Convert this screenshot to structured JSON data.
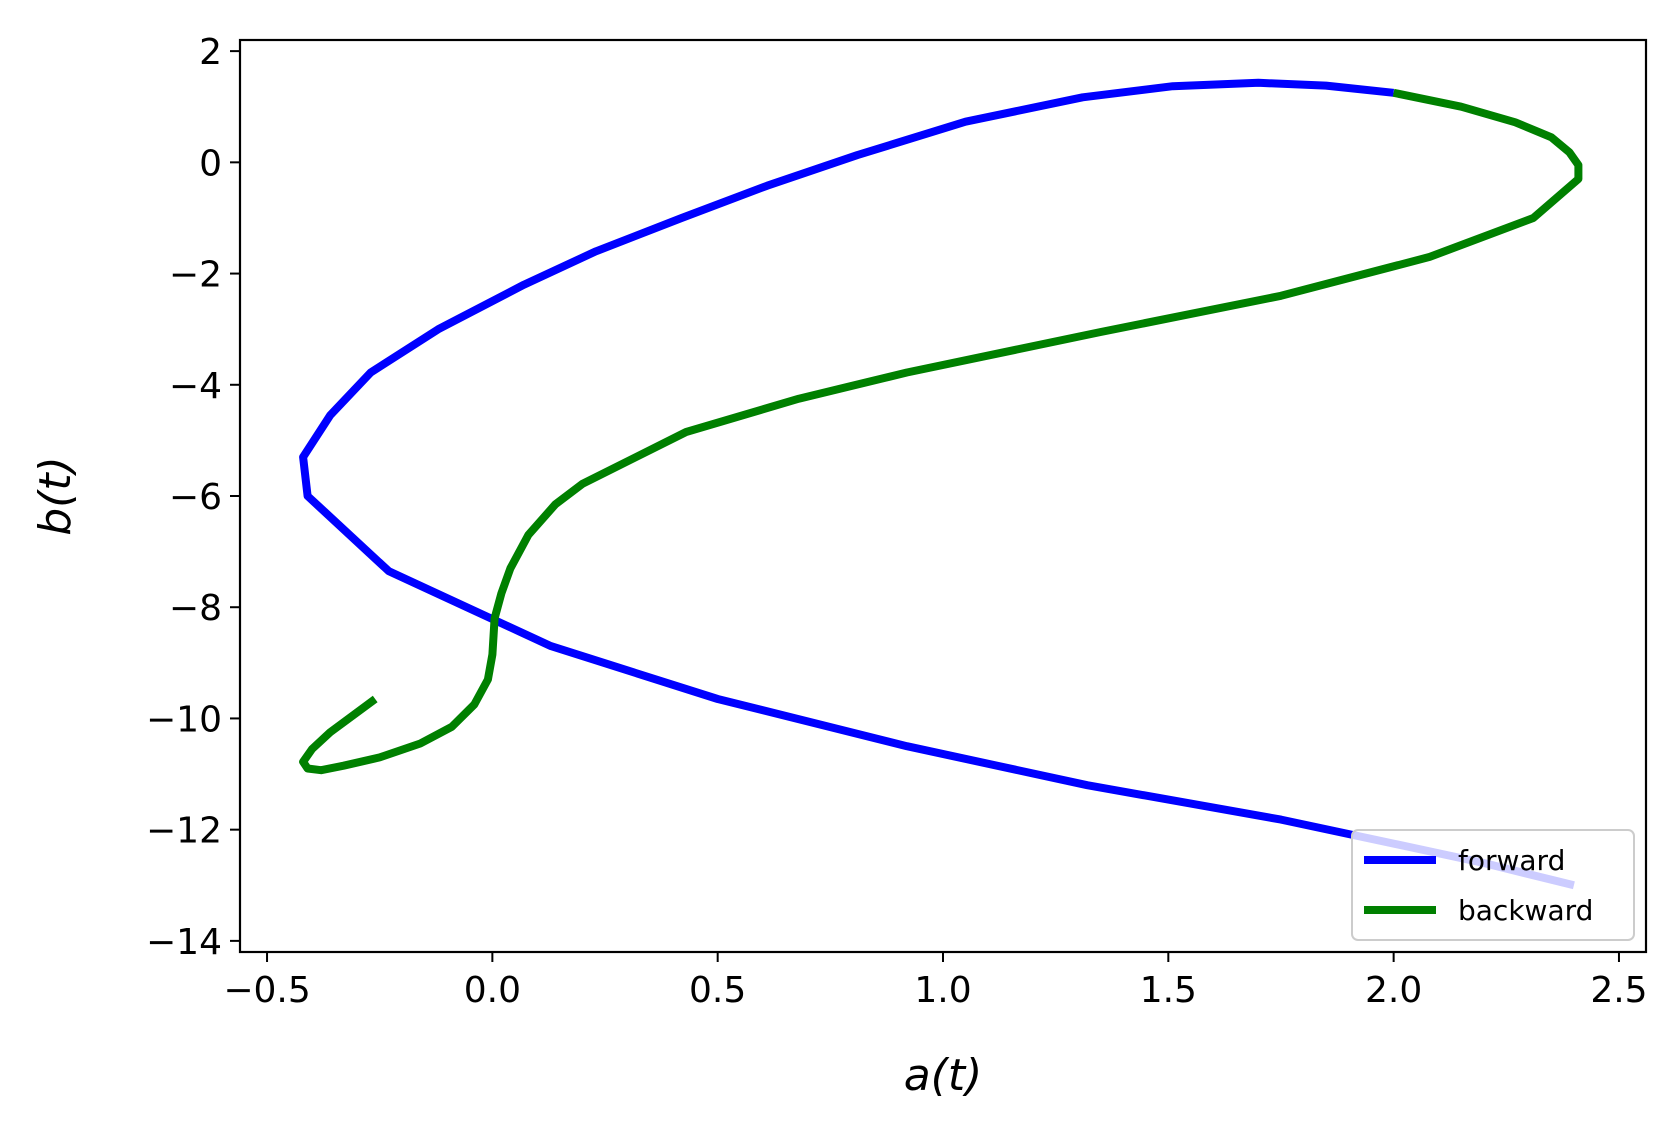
{
  "chart_data": {
    "type": "line",
    "title": "",
    "xlabel": "a(t)",
    "ylabel": "b(t)",
    "xlim": [
      -0.56,
      2.56
    ],
    "ylim": [
      -14.2,
      2.2
    ],
    "xticks": [
      -0.5,
      0.0,
      0.5,
      1.0,
      1.5,
      2.0,
      2.5
    ],
    "yticks": [
      2,
      0,
      -2,
      -4,
      -6,
      -8,
      -10,
      -12,
      -14
    ],
    "xtick_labels": [
      "−0.5",
      "0.0",
      "0.5",
      "1.0",
      "1.5",
      "2.0",
      "2.5"
    ],
    "ytick_labels": [
      "2",
      "0",
      "−2",
      "−4",
      "−6",
      "−8",
      "−10",
      "−12",
      "−14"
    ],
    "grid": false,
    "legend_position": "lower-right",
    "series": [
      {
        "name": "forward",
        "color": "#0000ff",
        "x": [
          2.4,
          2.2,
          2.0,
          1.75,
          1.32,
          0.92,
          0.5,
          0.13,
          -0.23,
          -0.41,
          -0.42,
          -0.36,
          -0.27,
          -0.12,
          0.07,
          0.23,
          0.42,
          0.61,
          0.81,
          1.05,
          1.31,
          1.51,
          1.7,
          1.85,
          2.0
        ],
        "y": [
          -13.0,
          -12.6,
          -12.25,
          -11.82,
          -11.2,
          -10.5,
          -9.65,
          -8.7,
          -7.35,
          -6.0,
          -5.3,
          -4.55,
          -3.78,
          -3.0,
          -2.2,
          -1.6,
          -1.0,
          -0.42,
          0.13,
          0.73,
          1.17,
          1.37,
          1.43,
          1.38,
          1.25
        ]
      },
      {
        "name": "backward",
        "color": "#008000",
        "x": [
          2.0,
          2.15,
          2.27,
          2.35,
          2.39,
          2.41,
          2.41,
          2.31,
          2.08,
          1.75,
          1.35,
          0.92,
          0.68,
          0.43,
          0.2,
          0.14,
          0.08,
          0.04,
          0.02,
          0.005,
          0.0,
          -0.01,
          -0.04,
          -0.09,
          -0.16,
          -0.25,
          -0.33,
          -0.38,
          -0.41,
          -0.42,
          -0.4,
          -0.36,
          -0.26
        ],
        "y": [
          1.25,
          1.0,
          0.72,
          0.45,
          0.18,
          -0.05,
          -0.3,
          -1.0,
          -1.7,
          -2.4,
          -3.05,
          -3.78,
          -4.25,
          -4.85,
          -5.78,
          -6.15,
          -6.7,
          -7.3,
          -7.75,
          -8.2,
          -8.85,
          -9.3,
          -9.75,
          -10.15,
          -10.45,
          -10.7,
          -10.85,
          -10.93,
          -10.9,
          -10.78,
          -10.55,
          -10.25,
          -9.65
        ]
      }
    ]
  }
}
